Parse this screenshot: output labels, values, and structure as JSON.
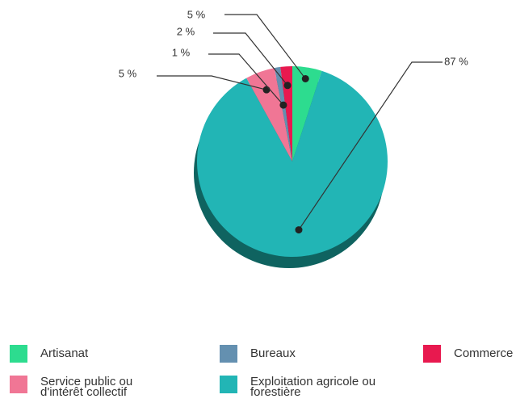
{
  "chart_data": {
    "type": "pie",
    "categories": [
      "Artisanat",
      "Exploitation agricole ou forestière",
      "Service public ou d'intérêt collectif",
      "Bureaux",
      "Commerce"
    ],
    "values": [
      5,
      87,
      5,
      1,
      2
    ],
    "value_labels": [
      "5 %",
      "87 %",
      "5 %",
      "1 %",
      "2 %"
    ],
    "colors": [
      "#2ddc8f",
      "#22b5b5",
      "#f07695",
      "#6490b0",
      "#e8194f"
    ]
  }
}
